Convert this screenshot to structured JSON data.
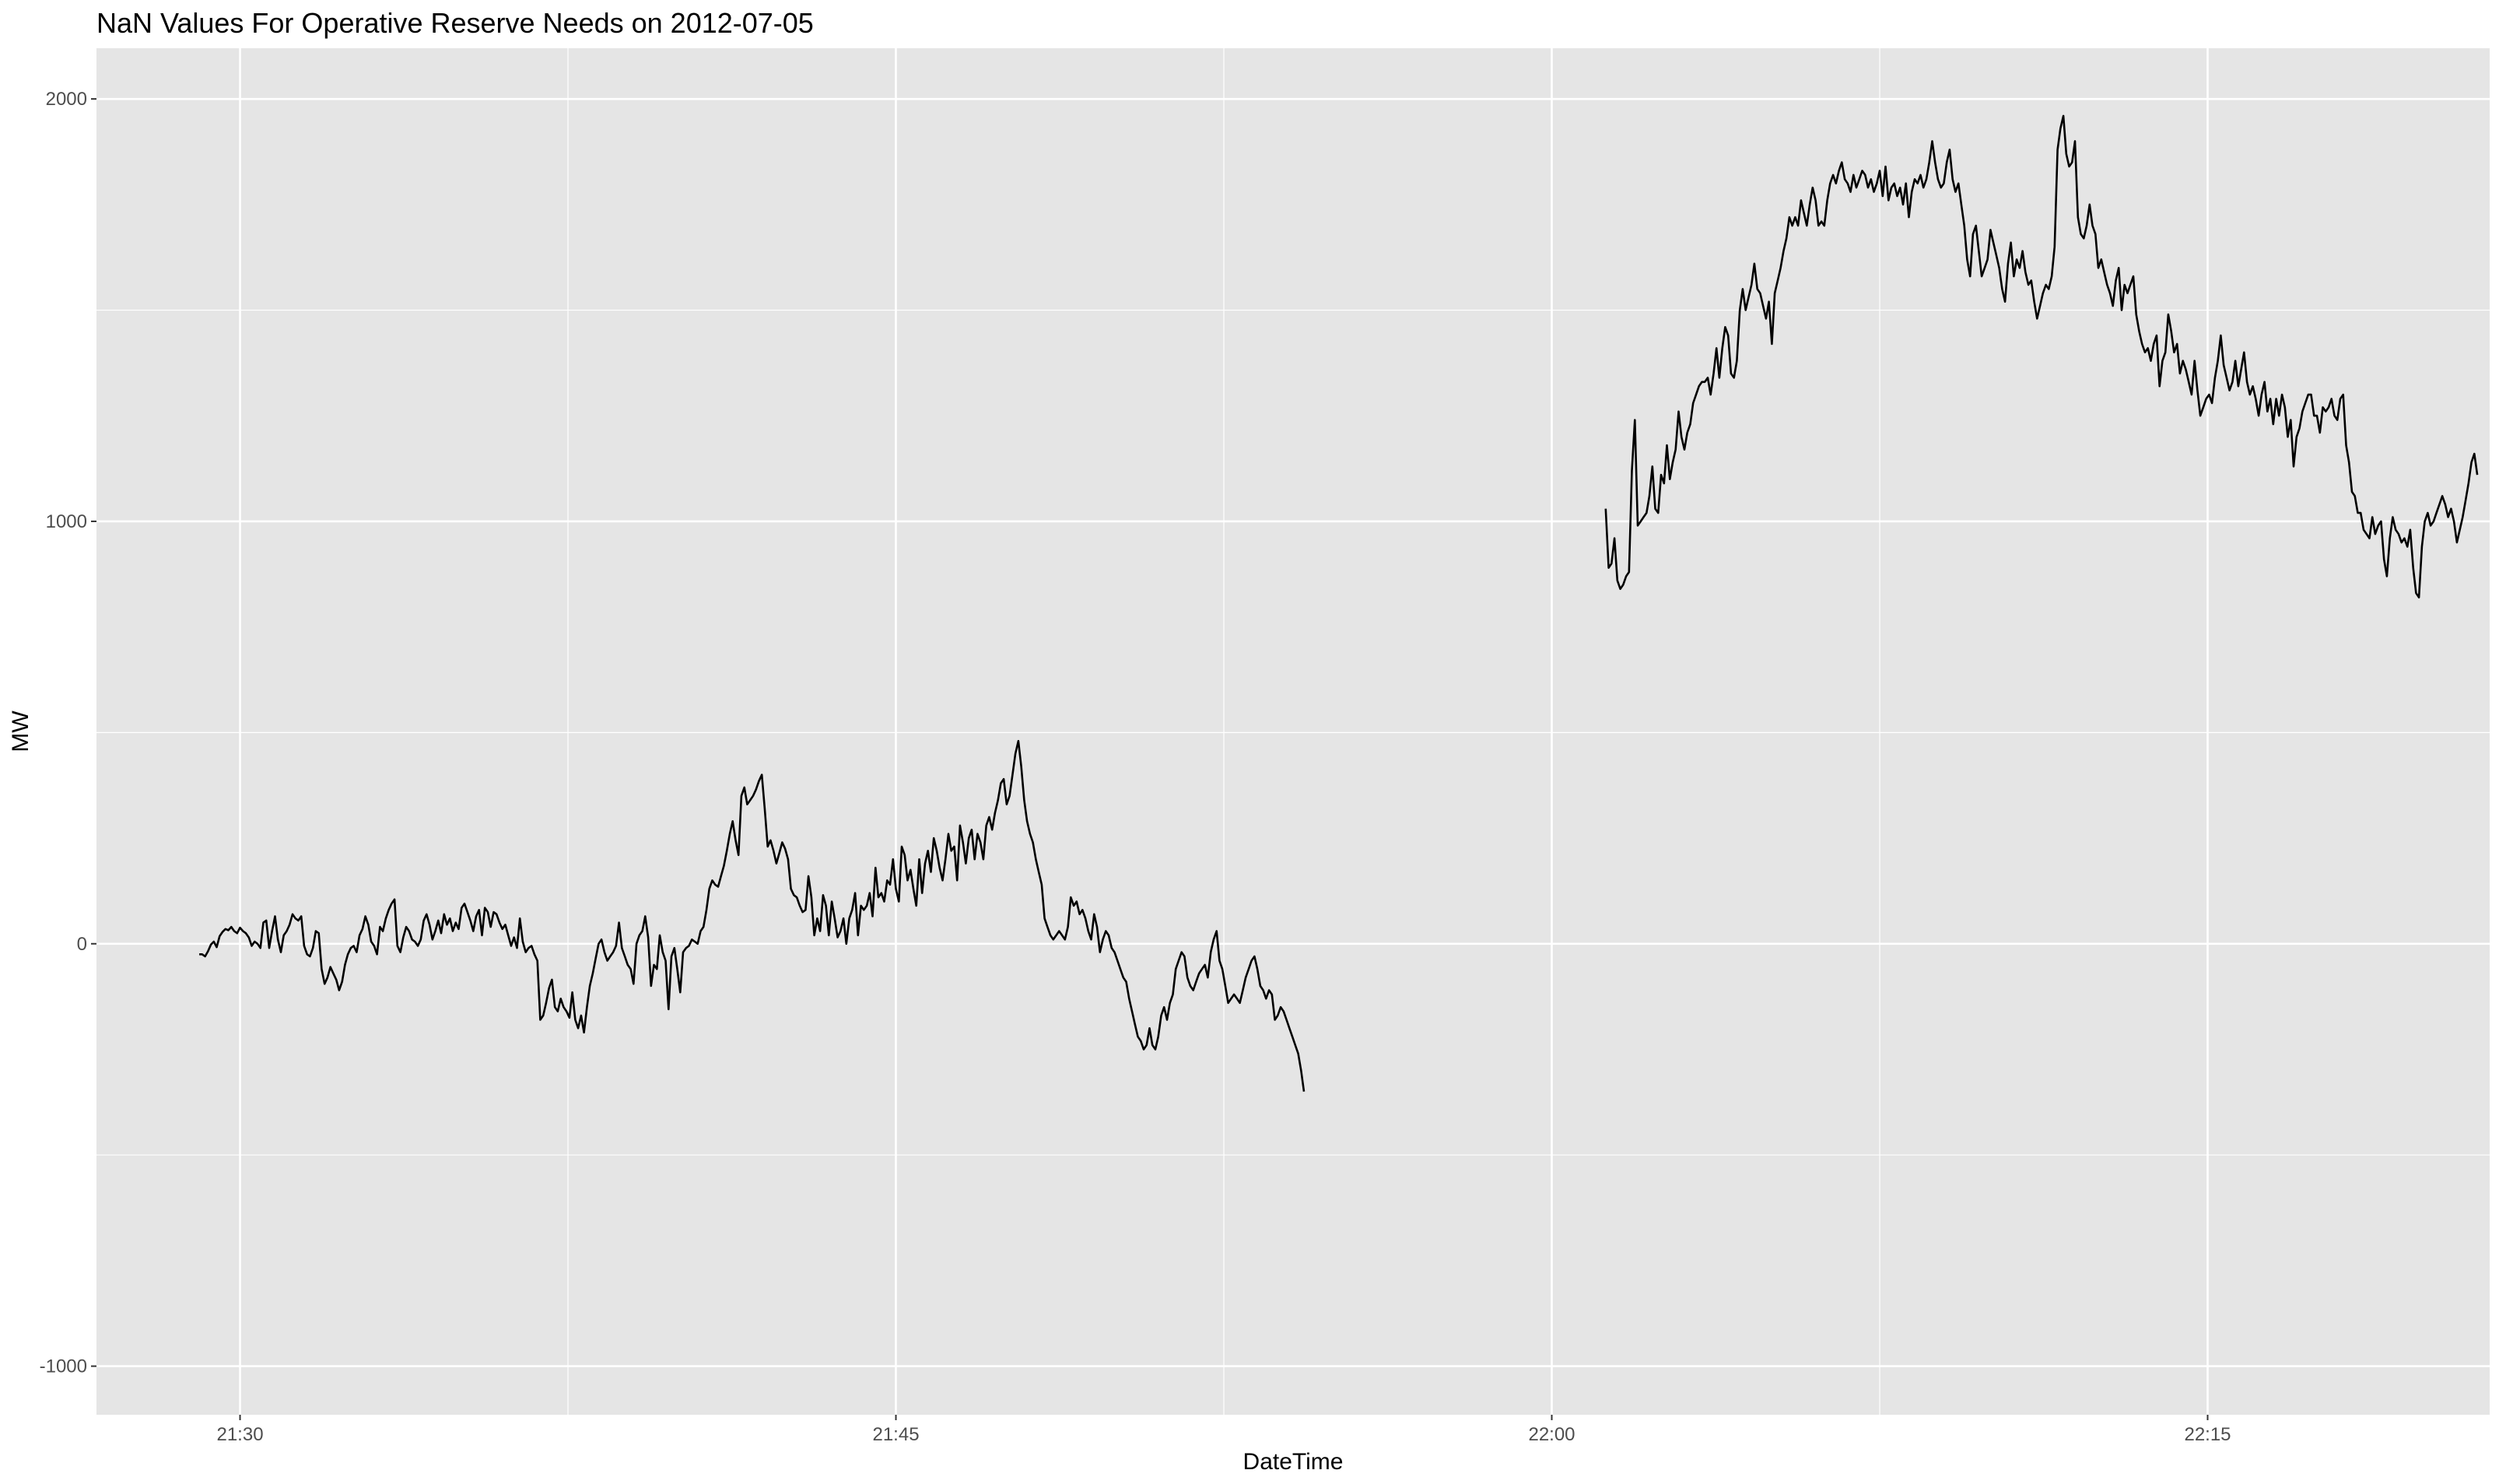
{
  "chart_data": {
    "type": "line",
    "title": "NaN Values For Operative Reserve Needs on 2012-07-05",
    "xlabel": "DateTime",
    "ylabel": "MW",
    "xlim": [
      "21:26:43",
      "22:21:27"
    ],
    "ylim": [
      -1115,
      2120
    ],
    "x_ticks": [
      "21:30",
      "21:45",
      "22:00",
      "22:15"
    ],
    "y_ticks": [
      -1000,
      0,
      1000,
      2000
    ],
    "y_tick_labels": [
      "-1000",
      "0",
      "1000",
      "2000"
    ],
    "grid": true,
    "panel_background": "#e5e5e5",
    "line_color": "#000000",
    "series": [
      {
        "segments": [
          {
            "start": "21:29:04",
            "step_seconds": 4,
            "values": [
              -25,
              -25,
              -30,
              -18,
              -2,
              5,
              -8,
              18,
              28,
              35,
              32,
              40,
              30,
              25,
              38,
              30,
              25,
              15,
              -5,
              5,
              0,
              -10,
              50,
              55,
              -10,
              30,
              65,
              10,
              -20,
              20,
              30,
              45,
              70,
              60,
              55,
              65,
              -5,
              -25,
              -30,
              -10,
              30,
              25,
              -60,
              -95,
              -80,
              -55,
              -70,
              -85,
              -110,
              -90,
              -50,
              -25,
              -10,
              -5,
              -20,
              20,
              35,
              65,
              45,
              5,
              -5,
              -25,
              40,
              30,
              60,
              80,
              95,
              105,
              -5,
              -20,
              15,
              40,
              30,
              10,
              5,
              -5,
              10,
              55,
              70,
              45,
              10,
              30,
              55,
              25,
              70,
              45,
              60,
              30,
              50,
              35,
              85,
              95,
              75,
              55,
              30,
              65,
              80,
              20,
              85,
              75,
              40,
              75,
              70,
              50,
              35,
              45,
              20,
              -5,
              15,
              -10,
              60,
              5,
              -20,
              -10,
              -5,
              -25,
              -40,
              -180,
              -170,
              -140,
              -105,
              -85,
              -150,
              -160,
              -130,
              -150,
              -160,
              -175,
              -115,
              -180,
              -200,
              -170,
              -210,
              -150,
              -100,
              -70,
              -35,
              0,
              10,
              -20,
              -40,
              -30,
              -20,
              -5,
              50,
              -10,
              -30,
              -50,
              -60,
              -95,
              0,
              20,
              30,
              65,
              15,
              -100,
              -50,
              -60,
              20,
              -20,
              -40,
              -155,
              -30,
              -10,
              -60,
              -115,
              -20,
              -10,
              -5,
              10,
              5,
              0,
              30,
              40,
              80,
              130,
              150,
              140,
              135,
              160,
              185,
              220,
              260,
              290,
              245,
              210,
              350,
              370,
              330,
              340,
              350,
              365,
              385,
              400,
              320,
              230,
              245,
              220,
              190,
              215,
              240,
              225,
              200,
              130,
              115,
              110,
              90,
              75,
              80,
              160,
              110,
              20,
              60,
              30,
              115,
              90,
              20,
              100,
              60,
              15,
              30,
              60,
              0,
              60,
              80,
              120,
              20,
              90,
              80,
              90,
              120,
              65,
              180,
              110,
              120,
              100,
              150,
              140,
              200,
              130,
              100,
              230,
              210,
              150,
              175,
              130,
              90,
              200,
              120,
              190,
              220,
              170,
              250,
              220,
              180,
              150,
              200,
              260,
              220,
              230,
              150,
              280,
              240,
              190,
              250,
              270,
              200,
              260,
              240,
              200,
              280,
              300,
              270,
              310,
              340,
              380,
              390,
              330,
              350,
              400,
              450,
              480,
              420,
              340,
              290,
              260,
              240,
              200,
              170,
              140,
              60,
              40,
              20,
              10,
              20,
              30,
              20,
              10,
              40,
              110,
              90,
              100,
              70,
              80,
              60,
              30,
              10,
              70,
              40,
              -20,
              10,
              30,
              20,
              -10,
              -20,
              -40,
              -60,
              -80,
              -90,
              -130,
              -160,
              -190,
              -220,
              -230,
              -250,
              -240,
              -200,
              -240,
              -250,
              -220,
              -170,
              -150,
              -180,
              -140,
              -120,
              -60,
              -40,
              -20,
              -30,
              -80,
              -100,
              -110,
              -90,
              -70,
              -60,
              -50,
              -80,
              -20,
              10,
              30,
              -40,
              -60,
              -100,
              -140,
              -130,
              -120,
              -130,
              -140,
              -110,
              -80,
              -60,
              -40,
              -30,
              -60,
              -100,
              -110,
              -130,
              -110,
              -120,
              -180,
              -170,
              -150,
              -160,
              -180,
              -200,
              -220,
              -240,
              -260,
              -300,
              -350
            ]
          },
          {
            "start": "22:01:14",
            "step_seconds": 4,
            "values": [
              1030,
              890,
              900,
              960,
              860,
              840,
              850,
              870,
              880,
              1120,
              1240,
              990,
              1000,
              1010,
              1020,
              1060,
              1130,
              1030,
              1020,
              1110,
              1090,
              1180,
              1100,
              1140,
              1170,
              1260,
              1200,
              1170,
              1210,
              1230,
              1280,
              1300,
              1320,
              1330,
              1330,
              1340,
              1300,
              1350,
              1410,
              1340,
              1410,
              1460,
              1440,
              1350,
              1340,
              1380,
              1500,
              1550,
              1500,
              1530,
              1560,
              1610,
              1550,
              1540,
              1510,
              1480,
              1520,
              1420,
              1540,
              1570,
              1600,
              1640,
              1670,
              1720,
              1700,
              1720,
              1700,
              1760,
              1730,
              1700,
              1750,
              1790,
              1760,
              1700,
              1710,
              1700,
              1760,
              1800,
              1820,
              1800,
              1830,
              1850,
              1810,
              1800,
              1780,
              1820,
              1790,
              1810,
              1830,
              1820,
              1790,
              1810,
              1780,
              1800,
              1830,
              1770,
              1840,
              1760,
              1790,
              1800,
              1770,
              1790,
              1750,
              1800,
              1720,
              1780,
              1810,
              1800,
              1820,
              1790,
              1810,
              1850,
              1900,
              1850,
              1810,
              1790,
              1800,
              1850,
              1880,
              1810,
              1780,
              1800,
              1750,
              1700,
              1620,
              1580,
              1680,
              1700,
              1640,
              1580,
              1600,
              1620,
              1690,
              1660,
              1630,
              1600,
              1550,
              1520,
              1610,
              1660,
              1580,
              1620,
              1600,
              1640,
              1590,
              1560,
              1570,
              1520,
              1480,
              1510,
              1540,
              1560,
              1550,
              1580,
              1650,
              1880,
              1930,
              1960,
              1870,
              1840,
              1850,
              1900,
              1720,
              1680,
              1670,
              1700,
              1750,
              1700,
              1680,
              1600,
              1620,
              1590,
              1560,
              1540,
              1510,
              1570,
              1600,
              1500,
              1560,
              1540,
              1560,
              1580,
              1490,
              1450,
              1420,
              1400,
              1410,
              1380,
              1420,
              1440,
              1320,
              1380,
              1400,
              1490,
              1450,
              1400,
              1420,
              1350,
              1380,
              1360,
              1330,
              1300,
              1380,
              1310,
              1250,
              1270,
              1290,
              1300,
              1280,
              1340,
              1380,
              1440,
              1370,
              1340,
              1310,
              1330,
              1380,
              1320,
              1360,
              1400,
              1330,
              1300,
              1320,
              1290,
              1250,
              1300,
              1330,
              1260,
              1290,
              1230,
              1290,
              1250,
              1300,
              1270,
              1200,
              1240,
              1130,
              1200,
              1220,
              1260,
              1280,
              1300,
              1300,
              1250,
              1250,
              1210,
              1270,
              1260,
              1270,
              1290,
              1250,
              1240,
              1290,
              1300,
              1180,
              1140,
              1070,
              1060,
              1020,
              1020,
              980,
              970,
              960,
              1010,
              970,
              990,
              1000,
              910,
              870,
              960,
              1010,
              980,
              970,
              950,
              960,
              940,
              980,
              890,
              830,
              820,
              940,
              1000,
              1020,
              990,
              1000,
              1020,
              1040,
              1060,
              1040,
              1010,
              1030,
              1000,
              950,
              980,
              1010,
              1050,
              1090,
              1140,
              1160,
              1110
            ]
          }
        ]
      }
    ]
  }
}
